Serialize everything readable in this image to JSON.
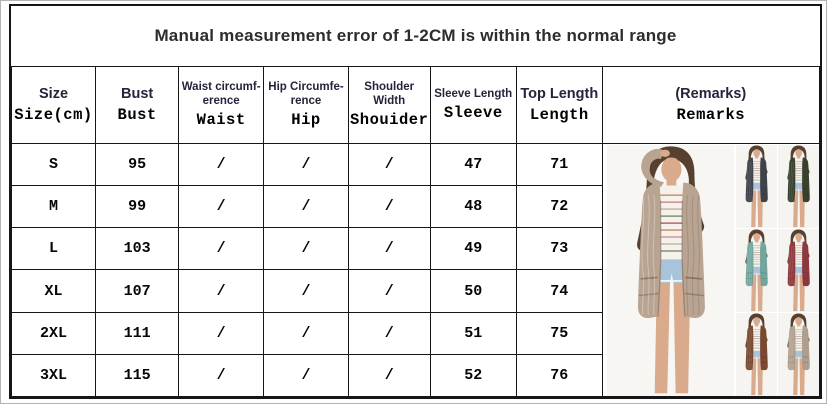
{
  "banner": {
    "text": "Manual measurement error of 1-2CM is within the normal range"
  },
  "table": {
    "headers": [
      {
        "label": "Size",
        "sublabel": "Size(cm)"
      },
      {
        "label": "Bust",
        "sublabel": "Bust"
      },
      {
        "label": "Waist circumf- erence",
        "sublabel": "Waist"
      },
      {
        "label": "Hip Circumfe- rence",
        "sublabel": "Hip"
      },
      {
        "label": "Shoulder Width",
        "sublabel": "Shouider"
      },
      {
        "label": "Sleeve Length",
        "sublabel": "Sleeve"
      },
      {
        "label": "Top Length",
        "sublabel": "Length"
      },
      {
        "label": "(Remarks)",
        "sublabel": "Remarks"
      }
    ],
    "rows": [
      [
        "S",
        "95",
        "/",
        "/",
        "/",
        "47",
        "71"
      ],
      [
        "M",
        "99",
        "/",
        "/",
        "/",
        "48",
        "72"
      ],
      [
        "L",
        "103",
        "/",
        "/",
        "/",
        "49",
        "73"
      ],
      [
        "XL",
        "107",
        "/",
        "/",
        "/",
        "50",
        "74"
      ],
      [
        "2XL",
        "111",
        "/",
        "/",
        "/",
        "51",
        "75"
      ],
      [
        "3XL",
        "115",
        "/",
        "/",
        "/",
        "52",
        "76"
      ]
    ]
  },
  "remarks_photo": {
    "subject": "model-wearing-open-front-cable-knit-cardigan",
    "main_color": "#b9a391",
    "variant_colors": [
      "#40444b",
      "#39422f",
      "#74a9a1",
      "#8f3a3f",
      "#7c4a32",
      "#b2a291"
    ],
    "skin_color": "#d9ab8c",
    "hair_color": "#57402f",
    "tee_color": "#f6f1ea",
    "stripe_colors": [
      "#c29072",
      "#c9909a",
      "#b7b3a6",
      "#6f8b74",
      "#a85a5a"
    ],
    "shorts_color": "#a9c4da"
  }
}
